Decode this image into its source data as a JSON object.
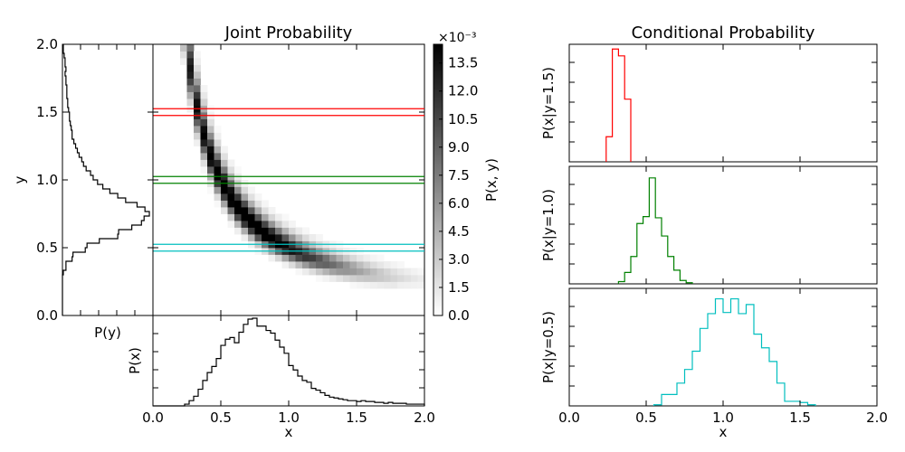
{
  "titles": {
    "joint": "Joint Probability",
    "conditional": "Conditional Probability"
  },
  "axis_labels": {
    "y_main": "y",
    "x_main": "x",
    "px": "P(x)",
    "py": "P(y)",
    "colorbar": "P(x, y)",
    "colorbar_exponent": "×10⁻³",
    "cond_x": "x",
    "cond_15": "P(x|y=1.5)",
    "cond_10": "P(x|y=1.0)",
    "cond_05": "P(x|y=0.5)"
  },
  "tick_labels": {
    "main_x": [
      "0.0",
      "0.5",
      "1.0",
      "1.5",
      "2.0"
    ],
    "main_y": [
      "0.0",
      "0.5",
      "1.0",
      "1.5",
      "2.0"
    ],
    "colorbar": [
      "0.0",
      "1.5",
      "3.0",
      "4.5",
      "6.0",
      "7.5",
      "9.0",
      "10.5",
      "12.0",
      "13.5"
    ],
    "cond_x": [
      "0.0",
      "0.5",
      "1.0",
      "1.5",
      "2.0"
    ]
  },
  "colors": {
    "slice_15": "#ff0000",
    "slice_10": "#008000",
    "slice_05": "#00bfbf"
  },
  "chart_data": [
    {
      "type": "heatmap",
      "title": "Joint Probability",
      "xlabel": "x",
      "ylabel": "y",
      "xlim": [
        0,
        2
      ],
      "ylim": [
        0,
        2
      ],
      "colorbar": {
        "label": "P(x, y)",
        "scale": "×10⁻³",
        "range": [
          0,
          14.5
        ],
        "colormap": "gray_r"
      },
      "ridge": "y ≈ 0.5 / x",
      "slice_lines": [
        {
          "y": 1.5,
          "halfwidth": 0.025,
          "color": "#ff0000"
        },
        {
          "y": 1.0,
          "halfwidth": 0.025,
          "color": "#008000"
        },
        {
          "y": 0.5,
          "halfwidth": 0.025,
          "color": "#00bfbf"
        }
      ]
    },
    {
      "type": "line",
      "name": "marginal-x",
      "ylabel": "P(x)",
      "x_range": [
        0,
        2
      ],
      "values": [
        0,
        0,
        0,
        0,
        0,
        0,
        0.0,
        0.02,
        0.06,
        0.11,
        0.19,
        0.29,
        0.38,
        0.45,
        0.54,
        0.69,
        0.76,
        0.78,
        0.72,
        0.84,
        0.93,
        0.99,
        1.0,
        0.91,
        0.91,
        0.86,
        0.83,
        0.75,
        0.67,
        0.6,
        0.46,
        0.41,
        0.34,
        0.29,
        0.27,
        0.2,
        0.18,
        0.15,
        0.12,
        0.1,
        0.09,
        0.08,
        0.07,
        0.06,
        0.06,
        0.05,
        0.06,
        0.05,
        0.05,
        0.04,
        0.04,
        0.03,
        0.04,
        0.03,
        0.03,
        0.03,
        0.02,
        0.02,
        0.02,
        0.02
      ]
    },
    {
      "type": "line",
      "name": "marginal-y",
      "xlabel": "P(y)",
      "y_range": [
        0,
        2
      ],
      "values": [
        0,
        0,
        0,
        0,
        0,
        0,
        0,
        0,
        0,
        0.01,
        0.04,
        0.04,
        0.11,
        0.12,
        0.26,
        0.28,
        0.42,
        0.63,
        0.64,
        0.79,
        0.9,
        0.93,
        0.99,
        0.94,
        0.85,
        0.72,
        0.63,
        0.54,
        0.46,
        0.4,
        0.35,
        0.32,
        0.27,
        0.24,
        0.22,
        0.19,
        0.17,
        0.15,
        0.13,
        0.11,
        0.11,
        0.1,
        0.09,
        0.08,
        0.08,
        0.07,
        0.06,
        0.06,
        0.05,
        0.05,
        0.05,
        0.04,
        0.04,
        0.03,
        0.04,
        0.03,
        0.03,
        0.02,
        0.01,
        0.01
      ]
    },
    {
      "type": "line",
      "name": "P(x|y=1.5)",
      "ylabel": "P(x|y=1.5)",
      "xlim": [
        0,
        2
      ],
      "bin_width": 0.04,
      "x0": 0.24,
      "values": [
        0.22,
        0.99,
        0.93,
        0.55
      ],
      "color": "#ff0000"
    },
    {
      "type": "line",
      "name": "P(x|y=1.0)",
      "ylabel": "P(x|y=1.0)",
      "xlim": [
        0,
        2
      ],
      "bin_width": 0.04,
      "x0": 0.32,
      "values": [
        0.02,
        0.1,
        0.24,
        0.53,
        0.59,
        0.93,
        0.58,
        0.42,
        0.24,
        0.12,
        0.03,
        0.01
      ],
      "color": "#008000"
    },
    {
      "type": "line",
      "name": "P(x|y=0.5)",
      "ylabel": "P(x|y=0.5)",
      "xlim": [
        0,
        2
      ],
      "xlabel": "x",
      "bin_width": 0.05,
      "x0": 0.55,
      "values": [
        0.01,
        0.1,
        0.1,
        0.2,
        0.32,
        0.48,
        0.68,
        0.81,
        0.94,
        0.82,
        0.94,
        0.81,
        0.89,
        0.63,
        0.51,
        0.39,
        0.2,
        0.04,
        0.04,
        0.03,
        0.01
      ],
      "color": "#00bfbf"
    }
  ]
}
